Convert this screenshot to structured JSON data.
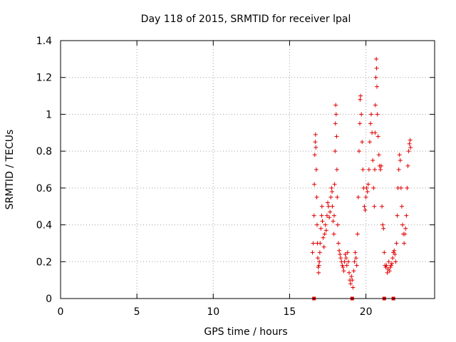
{
  "chart_data": {
    "type": "scatter",
    "title": "Day 118 of 2015, SRMTID for receiver lpal",
    "xlabel": "GPS time / hours",
    "ylabel": "SRMTID / TECUs",
    "xlim": [
      0,
      24.5
    ],
    "ylim": [
      0,
      1.4
    ],
    "xticks": [
      0,
      5,
      10,
      15,
      20
    ],
    "xtick_labels": [
      "0",
      "5",
      "10",
      "15",
      "20"
    ],
    "yticks": [
      0,
      0.2,
      0.4,
      0.6,
      0.8,
      1.0,
      1.2,
      1.4
    ],
    "ytick_labels": [
      "0",
      "0.2",
      "0.4",
      "0.6",
      "0.8",
      "1",
      "1.2",
      "1.4"
    ],
    "grid": true,
    "marker": "plus",
    "marker_color": "#e00000",
    "series": [
      {
        "name": "SRMTID",
        "points": [
          [
            16.5,
            0.25
          ],
          [
            16.55,
            0.3
          ],
          [
            16.6,
            0.45
          ],
          [
            16.62,
            0.62
          ],
          [
            16.65,
            0.78
          ],
          [
            16.68,
            0.85
          ],
          [
            16.7,
            0.89
          ],
          [
            16.72,
            0.82
          ],
          [
            16.75,
            0.7
          ],
          [
            16.78,
            0.55
          ],
          [
            16.8,
            0.4
          ],
          [
            16.82,
            0.3
          ],
          [
            16.85,
            0.22
          ],
          [
            16.88,
            0.17
          ],
          [
            16.9,
            0.14
          ],
          [
            16.92,
            0.18
          ],
          [
            16.95,
            0.2
          ],
          [
            16.98,
            0.25
          ],
          [
            17.0,
            0.3
          ],
          [
            17.05,
            0.38
          ],
          [
            17.1,
            0.45
          ],
          [
            17.12,
            0.5
          ],
          [
            17.15,
            0.42
          ],
          [
            17.2,
            0.33
          ],
          [
            17.25,
            0.28
          ],
          [
            17.3,
            0.35
          ],
          [
            17.35,
            0.4
          ],
          [
            17.4,
            0.37
          ],
          [
            17.45,
            0.45
          ],
          [
            17.5,
            0.52
          ],
          [
            17.55,
            0.5
          ],
          [
            17.6,
            0.44
          ],
          [
            17.65,
            0.47
          ],
          [
            17.7,
            0.55
          ],
          [
            17.75,
            0.6
          ],
          [
            17.78,
            0.58
          ],
          [
            17.8,
            0.5
          ],
          [
            17.85,
            0.42
          ],
          [
            17.9,
            0.35
          ],
          [
            17.92,
            0.45
          ],
          [
            17.95,
            0.62
          ],
          [
            17.98,
            0.8
          ],
          [
            18.0,
            0.95
          ],
          [
            18.02,
            1.05
          ],
          [
            18.05,
            1.0
          ],
          [
            18.08,
            0.88
          ],
          [
            18.1,
            0.7
          ],
          [
            18.12,
            0.55
          ],
          [
            18.15,
            0.4
          ],
          [
            18.2,
            0.3
          ],
          [
            18.25,
            0.26
          ],
          [
            18.3,
            0.24
          ],
          [
            18.35,
            0.22
          ],
          [
            18.4,
            0.2
          ],
          [
            18.45,
            0.18
          ],
          [
            18.5,
            0.17
          ],
          [
            18.55,
            0.15
          ],
          [
            18.6,
            0.2
          ],
          [
            18.65,
            0.24
          ],
          [
            18.7,
            0.22
          ],
          [
            18.75,
            0.18
          ],
          [
            18.8,
            0.25
          ],
          [
            18.85,
            0.2
          ],
          [
            18.9,
            0.14
          ],
          [
            18.95,
            0.1
          ],
          [
            19.0,
            0.08
          ],
          [
            19.05,
            0.12
          ],
          [
            19.1,
            0.1
          ],
          [
            19.15,
            0.06
          ],
          [
            19.2,
            0.15
          ],
          [
            19.25,
            0.2
          ],
          [
            19.3,
            0.25
          ],
          [
            19.35,
            0.22
          ],
          [
            19.4,
            0.18
          ],
          [
            19.45,
            0.35
          ],
          [
            19.5,
            0.55
          ],
          [
            19.55,
            0.8
          ],
          [
            19.6,
            0.95
          ],
          [
            19.62,
            1.08
          ],
          [
            19.65,
            1.1
          ],
          [
            19.7,
            1.0
          ],
          [
            19.75,
            0.85
          ],
          [
            19.8,
            0.7
          ],
          [
            19.85,
            0.6
          ],
          [
            19.9,
            0.5
          ],
          [
            19.95,
            0.48
          ],
          [
            20.0,
            0.55
          ],
          [
            20.05,
            0.6
          ],
          [
            20.1,
            0.58
          ],
          [
            20.15,
            0.62
          ],
          [
            20.2,
            0.7
          ],
          [
            20.25,
            0.85
          ],
          [
            20.3,
            0.95
          ],
          [
            20.35,
            1.0
          ],
          [
            20.4,
            0.9
          ],
          [
            20.45,
            0.75
          ],
          [
            20.5,
            0.6
          ],
          [
            20.55,
            0.5
          ],
          [
            20.58,
            0.7
          ],
          [
            20.6,
            0.9
          ],
          [
            20.62,
            1.05
          ],
          [
            20.65,
            1.2
          ],
          [
            20.68,
            1.3
          ],
          [
            20.7,
            1.25
          ],
          [
            20.72,
            1.15
          ],
          [
            20.75,
            1.0
          ],
          [
            20.8,
            0.88
          ],
          [
            20.85,
            0.78
          ],
          [
            20.9,
            0.72
          ],
          [
            20.95,
            0.7
          ],
          [
            21.0,
            0.72
          ],
          [
            21.05,
            0.5
          ],
          [
            21.1,
            0.4
          ],
          [
            21.15,
            0.38
          ],
          [
            21.2,
            0.25
          ],
          [
            21.25,
            0.18
          ],
          [
            21.3,
            0.17
          ],
          [
            21.35,
            0.18
          ],
          [
            21.4,
            0.14
          ],
          [
            21.45,
            0.16
          ],
          [
            21.5,
            0.2
          ],
          [
            21.55,
            0.15
          ],
          [
            21.6,
            0.17
          ],
          [
            21.65,
            0.18
          ],
          [
            21.7,
            0.19
          ],
          [
            21.75,
            0.22
          ],
          [
            21.8,
            0.25
          ],
          [
            21.85,
            0.26
          ],
          [
            21.9,
            0.24
          ],
          [
            21.95,
            0.2
          ],
          [
            22.0,
            0.3
          ],
          [
            22.05,
            0.45
          ],
          [
            22.1,
            0.6
          ],
          [
            22.15,
            0.7
          ],
          [
            22.2,
            0.78
          ],
          [
            22.25,
            0.75
          ],
          [
            22.3,
            0.6
          ],
          [
            22.35,
            0.5
          ],
          [
            22.4,
            0.4
          ],
          [
            22.45,
            0.35
          ],
          [
            22.5,
            0.3
          ],
          [
            22.55,
            0.35
          ],
          [
            22.6,
            0.38
          ],
          [
            22.65,
            0.45
          ],
          [
            22.7,
            0.6
          ],
          [
            22.75,
            0.72
          ],
          [
            22.8,
            0.8
          ],
          [
            22.85,
            0.84
          ],
          [
            22.9,
            0.86
          ],
          [
            22.92,
            0.82
          ]
        ]
      }
    ],
    "zero_markers_x": [
      16.6,
      19.1,
      21.2,
      21.8
    ]
  }
}
